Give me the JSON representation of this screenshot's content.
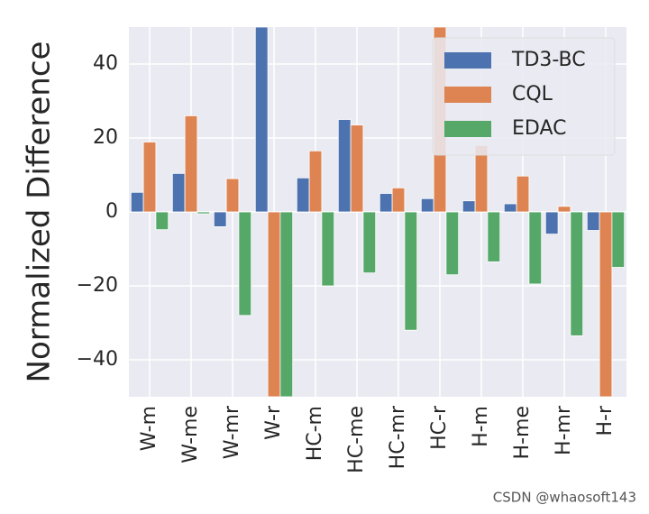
{
  "chart_data": {
    "type": "bar",
    "y_label": "Normalized Difference",
    "categories": [
      "W-m",
      "W-me",
      "W-mr",
      "W-r",
      "HC-m",
      "HC-me",
      "HC-mr",
      "HC-r",
      "H-m",
      "H-me",
      "H-mr",
      "H-r"
    ],
    "series": [
      {
        "name": "TD3-BC",
        "color": "#4c72b0",
        "values": [
          5.3,
          10.4,
          -4,
          50,
          9.2,
          25,
          5,
          3.6,
          3,
          2.2,
          -6,
          -5
        ]
      },
      {
        "name": "CQL",
        "color": "#dd8452",
        "values": [
          18.9,
          26,
          9,
          -50,
          16.5,
          23.5,
          6.5,
          50,
          18,
          9.7,
          1.5,
          -50
        ]
      },
      {
        "name": "EDAC",
        "color": "#55a868",
        "values": [
          -4.8,
          -0.5,
          -28,
          -50,
          -20,
          -16.5,
          -32,
          -17,
          -13.5,
          -19.5,
          -33.5,
          -15
        ]
      }
    ],
    "ylim": [
      -50,
      50
    ],
    "yticks": [
      {
        "value": -40,
        "label": "−40"
      },
      {
        "value": -20,
        "label": "−20"
      },
      0,
      20,
      40
    ],
    "grid": true,
    "legend": "upper right",
    "watermark": "CSDN @whaosoft143"
  }
}
